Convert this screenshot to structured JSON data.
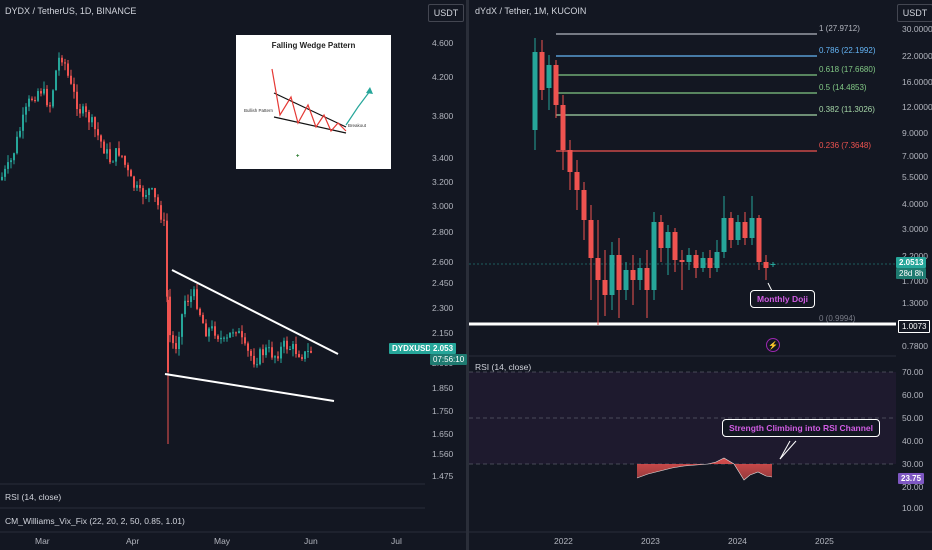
{
  "left": {
    "title": "DYDX / TetherUS, 1D, BINANCE",
    "currency_button": "USDT",
    "price_ticks": [
      "4.600",
      "4.200",
      "3.800",
      "3.400",
      "3.200",
      "3.000",
      "2.800",
      "2.600",
      "2.450",
      "2.300",
      "2.150",
      "2.000",
      "1.850",
      "1.750",
      "1.650",
      "1.560",
      "1.475"
    ],
    "time_ticks": [
      "Mar",
      "Apr",
      "May",
      "Jun",
      "Jul"
    ],
    "symbol_tag": "DYDXUSDT",
    "price_tag": "2.053",
    "countdown_tag": "07:56:10",
    "rsi_label": "RSI (14, close)",
    "vix_label": "CM_Williams_Vix_Fix (22, 20, 2, 50, 0.85, 1.01)",
    "inset": {
      "title": "Falling Wedge Pattern",
      "label_bullish": "Bullish Pattern",
      "label_breakout": "Breakout"
    }
  },
  "right": {
    "title": "dYdX / Tether, 1M, KUCOIN",
    "currency_button": "USDT",
    "price_ticks": [
      "30.0000",
      "22.0000",
      "16.0000",
      "12.0000",
      "9.0000",
      "7.0000",
      "5.5000",
      "4.0000",
      "3.0000",
      "2.2000",
      "1.7000",
      "1.3000",
      "0.7800"
    ],
    "time_ticks": [
      "2022",
      "2023",
      "2024",
      "2025"
    ],
    "price_tag": "2.0513",
    "countdown_tag": "28d 8h",
    "line_tag": "1.0073",
    "fib_levels": [
      {
        "label": "1 (27.9712)",
        "color": "#b2b5be"
      },
      {
        "label": "0.786 (22.1992)",
        "color": "#64b5f6"
      },
      {
        "label": "0.618 (17.6680)",
        "color": "#81c784"
      },
      {
        "label": "0.5 (14.4853)",
        "color": "#81c784"
      },
      {
        "label": "0.382 (11.3026)",
        "color": "#a5d6a7"
      },
      {
        "label": "0.236 (7.3648)",
        "color": "#ef5350"
      },
      {
        "label": "0 (0.9994)",
        "color": "#787b86"
      }
    ],
    "annotation_doji": "Monthly Doji",
    "rsi_label": "RSI (14, close)",
    "rsi_ticks": [
      "70.00",
      "60.00",
      "50.00",
      "40.00",
      "30.00",
      "20.00",
      "10.00"
    ],
    "rsi_value_tag": "23.75",
    "annotation_rsi": "Strength Climbing into RSI Channel"
  },
  "colors": {
    "up": "#26a69a",
    "down": "#ef5350",
    "background": "#131722",
    "accent": "#d05ce3"
  },
  "chart_data": [
    {
      "type": "candlestick",
      "title": "DYDX / TetherUS, 1D, BINANCE",
      "ylim": [
        1.475,
        4.6
      ],
      "x_categories": [
        "Mar",
        "Apr",
        "May",
        "Jun",
        "Jul"
      ],
      "approx_close_series": [
        3.6,
        3.9,
        4.3,
        4.5,
        4.2,
        3.9,
        3.6,
        3.4,
        3.3,
        3.1,
        2.9,
        2.1,
        2.3,
        2.35,
        2.2,
        2.15,
        2.1,
        2.05,
        2.0,
        2.05,
        2.053
      ],
      "last_price": 2.053
    },
    {
      "type": "candlestick",
      "title": "dYdX / Tether, 1M, KUCOIN",
      "ylim": [
        0.78,
        30
      ],
      "x_categories": [
        "2022",
        "2023",
        "2024",
        "2025"
      ],
      "approx_close_series": [
        20.0,
        11.5,
        7.0,
        4.8,
        3.5,
        2.3,
        1.9,
        1.8,
        1.9,
        2.1,
        2.5,
        2.3,
        2.2,
        2.1,
        2.3,
        2.9,
        2.6,
        2.4,
        2.0513
      ],
      "last_price": 2.0513,
      "fib_retracement": [
        27.9712,
        22.1992,
        17.668,
        14.4853,
        11.3026,
        7.3648,
        0.9994
      ]
    },
    {
      "type": "area",
      "title": "RSI (14, close)",
      "ylim": [
        10,
        70
      ],
      "bands": [
        30,
        50,
        70
      ],
      "last_value": 23.75
    }
  ]
}
